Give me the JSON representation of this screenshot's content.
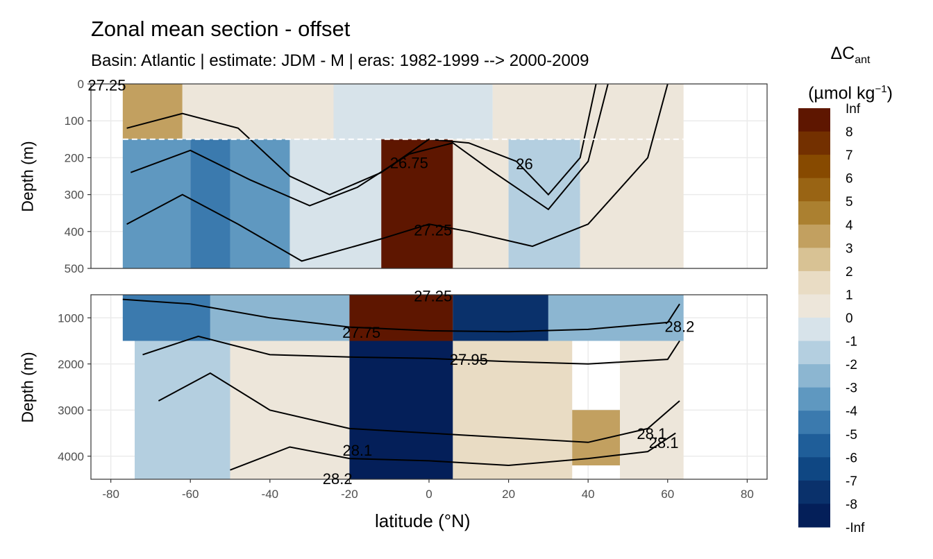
{
  "chart_data": {
    "type": "heatmap",
    "title": "Zonal mean section - offset",
    "subtitle": "Basin: Atlantic | estimate: JDM - M | eras: 1982-1999 --> 2000-2009",
    "xlabel": "latitude (°N)",
    "ylabel": "Depth (m)",
    "legend_title": "ΔC_ant (µmol kg⁻¹)",
    "legend_title_main": "ΔC",
    "legend_title_sub": "ant",
    "legend_title_unit": "(µmol kg",
    "legend_title_exp": "−1",
    "legend_title_close": ")",
    "xlim": [
      -85,
      85
    ],
    "x_ticks": [
      -80,
      -60,
      -40,
      -20,
      0,
      20,
      40,
      60,
      80
    ],
    "x_tick_labels": [
      "-80",
      "-60",
      "-40",
      "-20",
      "0",
      "20",
      "40",
      "60",
      "80"
    ],
    "panels": [
      {
        "name": "upper",
        "ylim": [
          0,
          500
        ],
        "y_ticks": [
          0,
          100,
          200,
          300,
          400,
          500
        ],
        "y_tick_labels": [
          "0",
          "100",
          "200",
          "300",
          "400",
          "500"
        ]
      },
      {
        "name": "lower",
        "ylim": [
          500,
          4500
        ],
        "y_ticks": [
          1000,
          2000,
          3000,
          4000
        ],
        "y_tick_labels": [
          "1000",
          "2000",
          "3000",
          "4000"
        ]
      }
    ],
    "mixed_layer_line_depth": 150,
    "legend_levels": [
      "Inf",
      "8",
      "7",
      "6",
      "5",
      "4",
      "3",
      "2",
      "1",
      "0",
      "-1",
      "-2",
      "-3",
      "-4",
      "-5",
      "-6",
      "-7",
      "-8",
      "-Inf"
    ],
    "legend_colors": [
      "#5e1600",
      "#733000",
      "#874a00",
      "#996414",
      "#ab8030",
      "#c2a060",
      "#d8c294",
      "#e9dcc4",
      "#ede6da",
      "#d7e3ea",
      "#b4cfe0",
      "#8cb6d1",
      "#5f98c0",
      "#3b7aae",
      "#1f5e99",
      "#0f4783",
      "#0a316b",
      "#041f59"
    ],
    "contour_labels": [
      {
        "text": "27.25",
        "lat": -81,
        "depth": 5,
        "panel": "upper"
      },
      {
        "text": "26.75",
        "lat": -5,
        "depth": 215,
        "panel": "upper"
      },
      {
        "text": "26",
        "lat": 24,
        "depth": 218,
        "panel": "upper"
      },
      {
        "text": "27.25",
        "lat": 1,
        "depth": 398,
        "panel": "upper"
      },
      {
        "text": "27.25",
        "lat": 1,
        "depth": 540,
        "panel": "lower"
      },
      {
        "text": "27.75",
        "lat": -17,
        "depth": 1330,
        "panel": "lower"
      },
      {
        "text": "27.95",
        "lat": 10,
        "depth": 1910,
        "panel": "lower"
      },
      {
        "text": "28.1",
        "lat": -18,
        "depth": 3880,
        "panel": "lower"
      },
      {
        "text": "28.2",
        "lat": -23,
        "depth": 4500,
        "panel": "lower"
      },
      {
        "text": "28.1",
        "lat": 56,
        "depth": 3520,
        "panel": "lower"
      },
      {
        "text": "28.1",
        "lat": 59,
        "depth": 3720,
        "panel": "lower"
      },
      {
        "text": "28.2",
        "lat": 63,
        "depth": 1200,
        "panel": "lower"
      }
    ],
    "fields": [
      {
        "panel": "upper",
        "lat": [
          -77,
          -62
        ],
        "depth": [
          0,
          150
        ],
        "level": "4"
      },
      {
        "panel": "upper",
        "lat": [
          -62,
          -24
        ],
        "depth": [
          0,
          150
        ],
        "level": "1"
      },
      {
        "panel": "upper",
        "lat": [
          -24,
          16
        ],
        "depth": [
          0,
          150
        ],
        "level": "0"
      },
      {
        "panel": "upper",
        "lat": [
          16,
          64
        ],
        "depth": [
          0,
          150
        ],
        "level": "1"
      },
      {
        "panel": "upper",
        "lat": [
          -77,
          -60
        ],
        "depth": [
          150,
          500
        ],
        "level": "-3"
      },
      {
        "panel": "upper",
        "lat": [
          -60,
          -50
        ],
        "depth": [
          150,
          500
        ],
        "level": "-4"
      },
      {
        "panel": "upper",
        "lat": [
          -50,
          -35
        ],
        "depth": [
          150,
          500
        ],
        "level": "-3"
      },
      {
        "panel": "upper",
        "lat": [
          -35,
          -12
        ],
        "depth": [
          150,
          500
        ],
        "level": "0"
      },
      {
        "panel": "upper",
        "lat": [
          -12,
          6
        ],
        "depth": [
          150,
          500
        ],
        "level": "Inf"
      },
      {
        "panel": "upper",
        "lat": [
          6,
          20
        ],
        "depth": [
          150,
          500
        ],
        "level": "1"
      },
      {
        "panel": "upper",
        "lat": [
          20,
          38
        ],
        "depth": [
          150,
          500
        ],
        "level": "-1"
      },
      {
        "panel": "upper",
        "lat": [
          38,
          64
        ],
        "depth": [
          150,
          500
        ],
        "level": "1"
      },
      {
        "panel": "lower",
        "lat": [
          -77,
          -55
        ],
        "depth": [
          500,
          1500
        ],
        "level": "-4"
      },
      {
        "panel": "lower",
        "lat": [
          -55,
          -20
        ],
        "depth": [
          500,
          1500
        ],
        "level": "-2"
      },
      {
        "panel": "lower",
        "lat": [
          -20,
          6
        ],
        "depth": [
          500,
          1500
        ],
        "level": "Inf"
      },
      {
        "panel": "lower",
        "lat": [
          6,
          30
        ],
        "depth": [
          500,
          1500
        ],
        "level": "-7"
      },
      {
        "panel": "lower",
        "lat": [
          30,
          64
        ],
        "depth": [
          500,
          1500
        ],
        "level": "-2"
      },
      {
        "panel": "lower",
        "lat": [
          -74,
          -50
        ],
        "depth": [
          1500,
          4500
        ],
        "level": "-1"
      },
      {
        "panel": "lower",
        "lat": [
          -50,
          -20
        ],
        "depth": [
          1500,
          4500
        ],
        "level": "1"
      },
      {
        "panel": "lower",
        "lat": [
          -20,
          6
        ],
        "depth": [
          1500,
          4500
        ],
        "level": "-8"
      },
      {
        "panel": "lower",
        "lat": [
          6,
          36
        ],
        "depth": [
          1500,
          4500
        ],
        "level": "2"
      },
      {
        "panel": "lower",
        "lat": [
          36,
          48
        ],
        "depth": [
          3000,
          4200
        ],
        "level": "4"
      },
      {
        "panel": "lower",
        "lat": [
          48,
          64
        ],
        "depth": [
          1500,
          4500
        ],
        "level": "1"
      }
    ],
    "isopycnals": [
      {
        "panel": "upper",
        "points": [
          [
            -76,
            120
          ],
          [
            -62,
            80
          ],
          [
            -48,
            120
          ],
          [
            -35,
            250
          ],
          [
            -25,
            300
          ],
          [
            -12,
            240
          ],
          [
            0,
            150
          ],
          [
            10,
            160
          ],
          [
            22,
            210
          ],
          [
            30,
            300
          ],
          [
            38,
            200
          ],
          [
            42,
            0
          ]
        ]
      },
      {
        "panel": "upper",
        "points": [
          [
            -75,
            240
          ],
          [
            -60,
            180
          ],
          [
            -45,
            260
          ],
          [
            -30,
            330
          ],
          [
            -18,
            280
          ],
          [
            -5,
            190
          ],
          [
            6,
            160
          ],
          [
            15,
            230
          ],
          [
            30,
            340
          ],
          [
            40,
            210
          ],
          [
            45,
            0
          ]
        ]
      },
      {
        "panel": "upper",
        "points": [
          [
            -76,
            380
          ],
          [
            -62,
            300
          ],
          [
            -48,
            380
          ],
          [
            -32,
            480
          ],
          [
            -12,
            420
          ],
          [
            0,
            380
          ],
          [
            10,
            400
          ],
          [
            26,
            440
          ],
          [
            40,
            380
          ],
          [
            55,
            200
          ],
          [
            60,
            0
          ]
        ]
      },
      {
        "panel": "lower",
        "points": [
          [
            -77,
            600
          ],
          [
            -60,
            700
          ],
          [
            -40,
            1000
          ],
          [
            -20,
            1200
          ],
          [
            0,
            1280
          ],
          [
            20,
            1300
          ],
          [
            40,
            1250
          ],
          [
            60,
            1100
          ],
          [
            63,
            700
          ]
        ]
      },
      {
        "panel": "lower",
        "points": [
          [
            -72,
            1800
          ],
          [
            -58,
            1400
          ],
          [
            -40,
            1800
          ],
          [
            -20,
            1850
          ],
          [
            0,
            1880
          ],
          [
            20,
            1950
          ],
          [
            40,
            2000
          ],
          [
            60,
            1900
          ],
          [
            63,
            1500
          ]
        ]
      },
      {
        "panel": "lower",
        "points": [
          [
            -68,
            2800
          ],
          [
            -55,
            2200
          ],
          [
            -40,
            3000
          ],
          [
            -20,
            3400
          ],
          [
            0,
            3500
          ],
          [
            20,
            3600
          ],
          [
            40,
            3700
          ],
          [
            55,
            3400
          ],
          [
            63,
            2800
          ]
        ]
      },
      {
        "panel": "lower",
        "points": [
          [
            -50,
            4300
          ],
          [
            -35,
            3800
          ],
          [
            -20,
            4050
          ],
          [
            0,
            4100
          ],
          [
            20,
            4200
          ],
          [
            40,
            4050
          ],
          [
            55,
            3900
          ],
          [
            62,
            3500
          ]
        ]
      }
    ]
  }
}
